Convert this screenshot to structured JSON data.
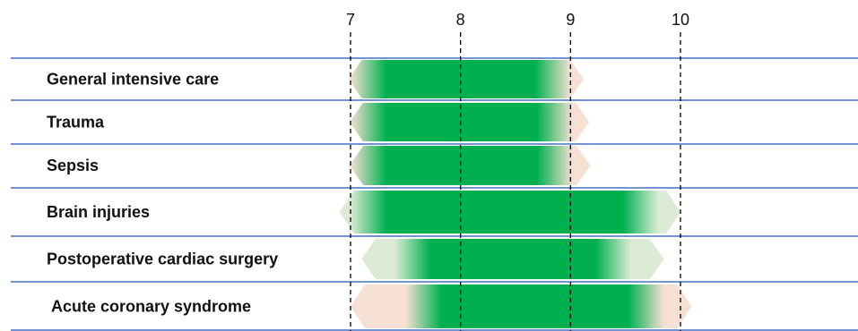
{
  "chart_data": {
    "type": "range-bar",
    "title": "",
    "xlabel": "",
    "ylabel": "",
    "x_ticks": [
      7,
      8,
      9,
      10
    ],
    "xlim": [
      6.98,
      10.05
    ],
    "colors": {
      "core": "#00b04f",
      "light_green": "#dcebd6",
      "peach": "#f6e0d3",
      "row_line": "#4472c4",
      "tick_line": "#000000"
    },
    "rows": [
      {
        "label": "General intensive care",
        "outer": [
          6.98,
          9.12
        ],
        "inner": [
          7.0,
          9.0
        ],
        "fade": "peach"
      },
      {
        "label": "Trauma",
        "outer": [
          6.99,
          9.17
        ],
        "inner": [
          7.0,
          9.02
        ],
        "fade": "peach"
      },
      {
        "label": "Sepsis",
        "outer": [
          6.99,
          9.18
        ],
        "inner": [
          7.0,
          9.02
        ],
        "fade": "peach"
      },
      {
        "label": "Brain injuries",
        "outer": [
          6.9,
          10.0
        ],
        "inner": [
          7.0,
          9.8
        ],
        "fade": "light_green"
      },
      {
        "label": "Postoperative cardiac surgery",
        "outer": [
          7.1,
          9.85
        ],
        "inner": [
          7.4,
          9.55
        ],
        "fade": "light_green"
      },
      {
        "label": "Acute coronary syndrome",
        "outer": [
          7.0,
          10.1
        ],
        "inner": [
          7.5,
          9.85
        ],
        "fade": "peach"
      }
    ]
  }
}
